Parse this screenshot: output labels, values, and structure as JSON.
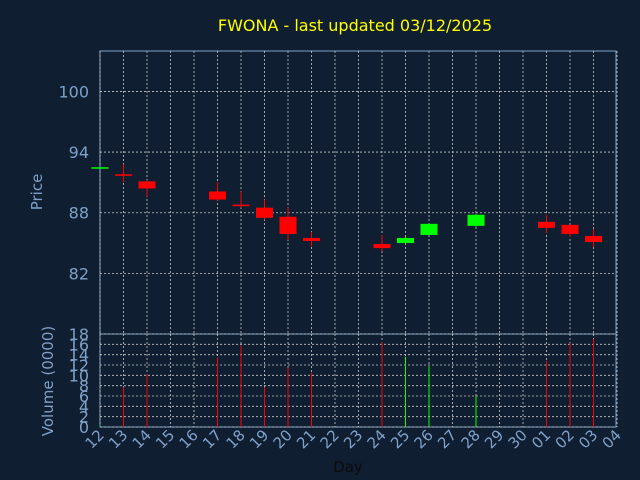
{
  "chart_data": [
    {
      "type": "candlestick",
      "title": "FWONA - last updated 03/12/2025",
      "ylabel": "Price",
      "ylim": [
        76,
        104
      ],
      "yticks": [
        82,
        88,
        94,
        100
      ],
      "x_tick_labels": [
        "12",
        "13",
        "14",
        "15",
        "16",
        "17",
        "18",
        "19",
        "20",
        "21",
        "22",
        "23",
        "24",
        "25",
        "26",
        "27",
        "28",
        "29",
        "30",
        "01",
        "02",
        "03",
        "04"
      ],
      "grid": true,
      "up_color": "#00ff00",
      "down_color": "#ff0000",
      "candles": [
        {
          "day": "12",
          "open": 92.4,
          "high": 92.5,
          "low": 92.4,
          "close": 92.5
        },
        {
          "day": "13",
          "open": 91.8,
          "high": 92.8,
          "low": 91.0,
          "close": 91.7
        },
        {
          "day": "14",
          "open": 91.1,
          "high": 91.2,
          "low": 89.6,
          "close": 90.4
        },
        {
          "day": "17",
          "open": 90.1,
          "high": 91.0,
          "low": 89.2,
          "close": 89.3
        },
        {
          "day": "18",
          "open": 88.8,
          "high": 90.1,
          "low": 88.5,
          "close": 88.7
        },
        {
          "day": "19",
          "open": 88.5,
          "high": 89.3,
          "low": 87.3,
          "close": 87.5
        },
        {
          "day": "20",
          "open": 87.6,
          "high": 88.5,
          "low": 85.3,
          "close": 85.9
        },
        {
          "day": "21",
          "open": 85.5,
          "high": 86.1,
          "low": 84.7,
          "close": 85.2
        },
        {
          "day": "24",
          "open": 84.9,
          "high": 85.8,
          "low": 84.2,
          "close": 84.5
        },
        {
          "day": "25",
          "open": 85.0,
          "high": 85.6,
          "low": 85.0,
          "close": 85.5
        },
        {
          "day": "26",
          "open": 85.8,
          "high": 86.9,
          "low": 85.8,
          "close": 86.9
        },
        {
          "day": "28",
          "open": 86.7,
          "high": 87.9,
          "low": 86.6,
          "close": 87.8
        },
        {
          "day": "01",
          "open": 87.1,
          "high": 87.8,
          "low": 86.0,
          "close": 86.5
        },
        {
          "day": "02",
          "open": 86.8,
          "high": 86.8,
          "low": 85.6,
          "close": 85.9
        },
        {
          "day": "03",
          "open": 85.7,
          "high": 86.4,
          "low": 84.6,
          "close": 85.1
        }
      ]
    },
    {
      "type": "bar",
      "ylabel": "Volume (0000)",
      "xlabel": "Day",
      "ylim": [
        0,
        18
      ],
      "yticks": [
        0,
        2,
        4,
        6,
        8,
        10,
        12,
        14,
        16,
        18
      ],
      "x_tick_labels": [
        "12",
        "13",
        "14",
        "15",
        "16",
        "17",
        "18",
        "19",
        "20",
        "21",
        "22",
        "23",
        "24",
        "25",
        "26",
        "27",
        "28",
        "29",
        "30",
        "01",
        "02",
        "03",
        "04"
      ],
      "grid": true,
      "bars": [
        {
          "day": "12",
          "value": 0.3,
          "direction": "up"
        },
        {
          "day": "13",
          "value": 7.7,
          "direction": "down"
        },
        {
          "day": "14",
          "value": 10.2,
          "direction": "down"
        },
        {
          "day": "17",
          "value": 13.4,
          "direction": "down"
        },
        {
          "day": "18",
          "value": 15.8,
          "direction": "down"
        },
        {
          "day": "19",
          "value": 7.7,
          "direction": "down"
        },
        {
          "day": "20",
          "value": 11.5,
          "direction": "down"
        },
        {
          "day": "21",
          "value": 10.5,
          "direction": "down"
        },
        {
          "day": "24",
          "value": 16.4,
          "direction": "down"
        },
        {
          "day": "25",
          "value": 13.6,
          "direction": "up"
        },
        {
          "day": "26",
          "value": 11.8,
          "direction": "up"
        },
        {
          "day": "28",
          "value": 6.0,
          "direction": "up"
        },
        {
          "day": "01",
          "value": 12.8,
          "direction": "down"
        },
        {
          "day": "02",
          "value": 16.2,
          "direction": "down"
        },
        {
          "day": "03",
          "value": 17.0,
          "direction": "down"
        }
      ]
    }
  ]
}
